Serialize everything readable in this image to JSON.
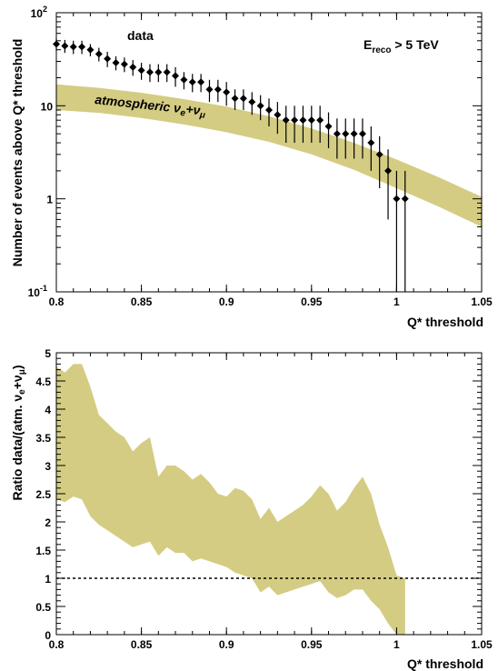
{
  "colors": {
    "band": "#d4cc82",
    "marker": "#000000",
    "background": "#ffffff"
  },
  "chart_data": [
    {
      "type": "line",
      "scale_y": "log",
      "xlabel": "Q* threshold",
      "ylabel": "Number of events above Q* threshold",
      "xlim": [
        0.8,
        1.05
      ],
      "ylim": [
        0.1,
        100
      ],
      "x_ticks": [
        "0.8",
        "0.85",
        "0.9",
        "0.95",
        "1",
        "1.05"
      ],
      "y_ticks": [
        {
          "value": 0.1,
          "base": "10",
          "exp": "-1"
        },
        {
          "value": 1,
          "base": "1",
          "exp": ""
        },
        {
          "value": 10,
          "base": "10",
          "exp": ""
        },
        {
          "value": 100,
          "base": "10",
          "exp": "2"
        }
      ],
      "annotations": {
        "data_label": "data",
        "band_label": {
          "text": "atmospheric ν",
          "sub1": "e",
          "plus": "+ν",
          "sub2": "μ"
        },
        "cut": {
          "text": "E",
          "sub": "reco",
          "rest": " > 5 TeV"
        }
      },
      "series": [
        {
          "name": "data",
          "kind": "points",
          "x": [
            0.8,
            0.805,
            0.81,
            0.815,
            0.82,
            0.825,
            0.83,
            0.835,
            0.84,
            0.845,
            0.85,
            0.855,
            0.86,
            0.865,
            0.87,
            0.875,
            0.88,
            0.885,
            0.89,
            0.895,
            0.9,
            0.905,
            0.91,
            0.915,
            0.92,
            0.925,
            0.93,
            0.935,
            0.94,
            0.945,
            0.95,
            0.955,
            0.96,
            0.965,
            0.97,
            0.975,
            0.98,
            0.985,
            0.99,
            0.995,
            1.0,
            1.005
          ],
          "y": [
            46,
            44,
            43,
            43,
            40,
            36,
            32,
            29,
            28,
            26,
            24,
            23,
            23,
            23,
            21,
            19,
            18,
            18,
            15,
            15,
            14,
            12,
            12,
            11,
            10,
            9,
            8,
            7,
            7,
            7,
            7,
            7,
            6,
            5,
            5,
            5,
            5,
            4,
            3,
            2,
            1,
            1
          ],
          "err": [
            7,
            7,
            7,
            7,
            6,
            6,
            6,
            5,
            5,
            5,
            5,
            5,
            5,
            5,
            5,
            4,
            4,
            4,
            4,
            4,
            4,
            3,
            3,
            3,
            3,
            3,
            3,
            3,
            3,
            3,
            3,
            3,
            2.5,
            2.3,
            2.3,
            2.3,
            2.3,
            2.0,
            1.7,
            1.4,
            1,
            1
          ]
        },
        {
          "name": "atmospheric νe+νμ",
          "kind": "band",
          "x": [
            0.8,
            0.825,
            0.85,
            0.875,
            0.9,
            0.925,
            0.95,
            0.975,
            1.0,
            1.025,
            1.05
          ],
          "low": [
            9,
            8.4,
            7.4,
            6.3,
            5.2,
            4.1,
            3.0,
            2.05,
            1.3,
            0.82,
            0.5
          ],
          "high": [
            17,
            15.6,
            13.8,
            11.8,
            9.8,
            7.7,
            5.7,
            4.0,
            2.65,
            1.7,
            1.05
          ]
        }
      ]
    },
    {
      "type": "area",
      "xlabel": "Q* threshold",
      "ylabel": "Ratio data/(atm. νe+νμ)",
      "ylabel_parts": {
        "text": "Ratio data/(atm. ν",
        "sub1": "e",
        "plus": "+ν",
        "sub2": "μ",
        "close": ")"
      },
      "xlim": [
        0.8,
        1.05
      ],
      "ylim": [
        0,
        5
      ],
      "x_ticks": [
        "0.8",
        "0.85",
        "0.9",
        "0.95",
        "1",
        "1.05"
      ],
      "y_ticks": [
        "0",
        "0.5",
        "1",
        "1.5",
        "2",
        "2.5",
        "3",
        "3.5",
        "4",
        "4.5",
        "5"
      ],
      "reference_line": 1,
      "series": [
        {
          "name": "",
          "kind": "band",
          "x": [
            0.8,
            0.805,
            0.81,
            0.815,
            0.82,
            0.825,
            0.83,
            0.835,
            0.84,
            0.845,
            0.85,
            0.855,
            0.86,
            0.865,
            0.87,
            0.875,
            0.88,
            0.885,
            0.89,
            0.895,
            0.9,
            0.905,
            0.91,
            0.915,
            0.92,
            0.925,
            0.93,
            0.935,
            0.94,
            0.945,
            0.95,
            0.955,
            0.96,
            0.965,
            0.97,
            0.975,
            0.98,
            0.985,
            0.99,
            0.995,
            1.0,
            1.005
          ],
          "low": [
            2.4,
            2.35,
            2.45,
            2.4,
            2.1,
            1.95,
            1.85,
            1.75,
            1.65,
            1.55,
            1.6,
            1.65,
            1.4,
            1.55,
            1.45,
            1.45,
            1.3,
            1.35,
            1.3,
            1.25,
            1.2,
            1.1,
            1.05,
            1.0,
            0.75,
            0.85,
            0.7,
            0.75,
            0.8,
            0.85,
            0.9,
            0.95,
            0.75,
            0.65,
            0.7,
            0.8,
            0.8,
            0.6,
            0.45,
            0.2,
            0.0,
            0.0
          ],
          "high": [
            4.75,
            4.65,
            4.8,
            4.8,
            4.4,
            3.9,
            3.75,
            3.6,
            3.5,
            3.25,
            3.4,
            3.5,
            2.8,
            3.0,
            3.0,
            2.9,
            2.75,
            2.85,
            2.7,
            2.5,
            2.45,
            2.6,
            2.55,
            2.4,
            2.05,
            2.25,
            2.0,
            2.1,
            2.2,
            2.3,
            2.45,
            2.65,
            2.5,
            2.2,
            2.35,
            2.6,
            2.8,
            2.5,
            1.95,
            1.55,
            1.05,
            1.0
          ]
        }
      ]
    }
  ]
}
